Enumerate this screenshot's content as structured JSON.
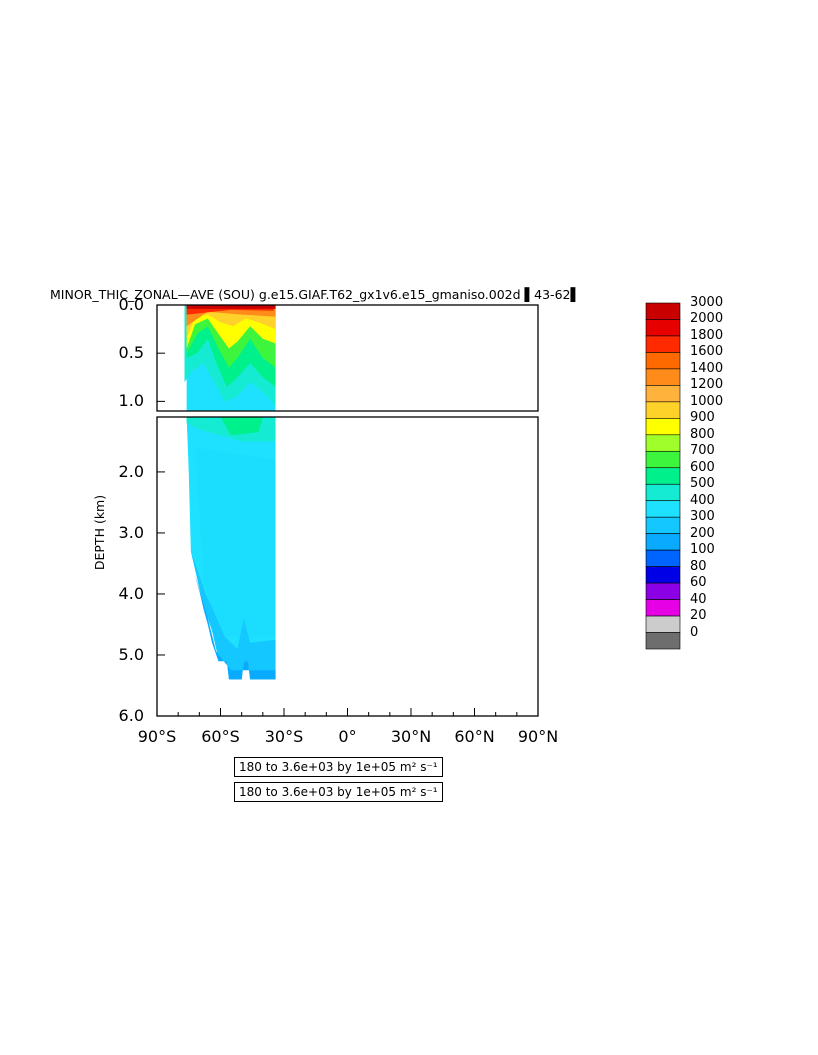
{
  "chart_data": {
    "type": "heatmap",
    "title": "MINOR_THIC_ZONAL—AVE (SOU) g.e15.GIAF.T62_gx1v6.e15_gmaniso.002d ▌43-62▌",
    "ylabel": "DEPTH (km)",
    "xlabel": "",
    "xlim": [
      -90,
      90
    ],
    "ylim": [
      6.0,
      0.0
    ],
    "upper_panel_ylim": [
      0.0,
      1.1
    ],
    "lower_panel_ylim": [
      1.1,
      6.0
    ],
    "x_tick_labels": [
      "90°S",
      "60°S",
      "30°S",
      "0°",
      "30°N",
      "60°N",
      "90°N"
    ],
    "x_tick_values": [
      -90,
      -60,
      -30,
      0,
      30,
      60,
      90
    ],
    "upper_y_tick_labels": [
      "0.0",
      "0.5",
      "1.0"
    ],
    "upper_y_tick_values": [
      0.0,
      0.5,
      1.0
    ],
    "lower_y_tick_labels": [
      "2.0",
      "3.0",
      "4.0",
      "5.0",
      "6.0"
    ],
    "lower_y_tick_values": [
      2.0,
      3.0,
      4.0,
      5.0,
      6.0
    ],
    "info_lines": [
      "180 to 3.6e+03 by 1e+05 m² s⁻¹",
      "180 to 3.6e+03 by 1e+05 m² s⁻¹"
    ],
    "colorbar": {
      "levels": [
        "3000",
        "2000",
        "1800",
        "1600",
        "1400",
        "1200",
        "1000",
        "900",
        "800",
        "700",
        "600",
        "500",
        "400",
        "300",
        "200",
        "100",
        "80",
        "60",
        "40",
        "20",
        "0"
      ],
      "colors": [
        "#c80000",
        "#e60000",
        "#ff2a00",
        "#ff6a00",
        "#ff8c1a",
        "#ffb23c",
        "#ffd22a",
        "#ffff00",
        "#a0ff2a",
        "#3cf53c",
        "#00f08c",
        "#14ebd2",
        "#1ee1ff",
        "#14c8ff",
        "#0aaaff",
        "#0064ff",
        "#0000e6",
        "#8c00e6",
        "#e600e6",
        "#cccccc",
        "#6e6e6e"
      ]
    },
    "data_extent": {
      "lat_range": [
        -76,
        -34
      ],
      "note_depths_km": [
        0.0,
        5.4
      ]
    }
  }
}
